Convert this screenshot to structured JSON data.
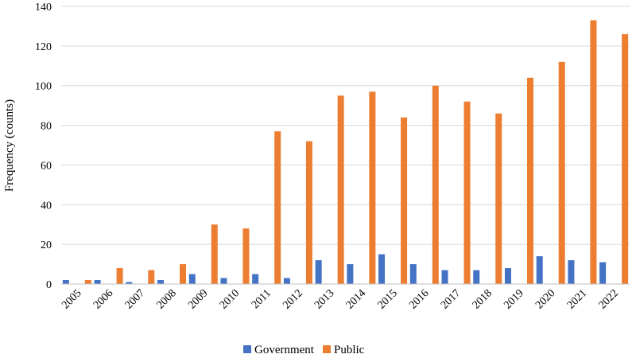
{
  "chart_data": {
    "type": "bar",
    "title": "",
    "xlabel": "",
    "ylabel": "Frequency (counts)",
    "ylim": [
      0,
      140
    ],
    "yticks": [
      0,
      20,
      40,
      60,
      80,
      100,
      120,
      140
    ],
    "grid": "horizontal",
    "legend_position": "bottom",
    "categories": [
      "2005",
      "2006",
      "2007",
      "2008",
      "2009",
      "2010",
      "2011",
      "2012",
      "2013",
      "2014",
      "2015",
      "2016",
      "2017",
      "2018",
      "2019",
      "2020",
      "2021",
      "2022"
    ],
    "series": [
      {
        "name": "Government",
        "color": "#4472C4",
        "values": [
          2,
          2,
          1,
          2,
          5,
          3,
          5,
          3,
          12,
          10,
          15,
          10,
          7,
          7,
          8,
          14,
          12,
          11
        ]
      },
      {
        "name": "Public",
        "color": "#ED7D31",
        "values": [
          2,
          8,
          7,
          10,
          30,
          28,
          77,
          72,
          95,
          97,
          84,
          100,
          92,
          86,
          104,
          112,
          133,
          126
        ]
      }
    ]
  }
}
